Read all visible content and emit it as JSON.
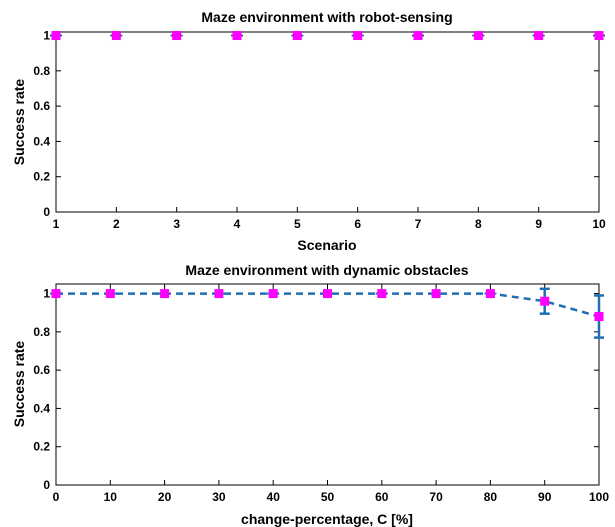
{
  "chart_data": [
    {
      "type": "scatter",
      "title": "Maze environment with robot-sensing",
      "xlabel": "Scenario",
      "ylabel": "Success rate",
      "xlim": [
        1,
        10
      ],
      "ylim": [
        0,
        1.02
      ],
      "xticks": [
        "1",
        "2",
        "3",
        "4",
        "5",
        "6",
        "7",
        "8",
        "9",
        "10"
      ],
      "yticks": [
        "0",
        "0.2",
        "0.4",
        "0.6",
        "0.8",
        "1"
      ],
      "grid": false,
      "marker_color": "#ff00ff",
      "errorbar_color": "#1f5fa8",
      "x": [
        1,
        2,
        3,
        4,
        5,
        6,
        7,
        8,
        9,
        10
      ],
      "y": [
        1,
        1,
        1,
        1,
        1,
        1,
        1,
        1,
        1,
        1
      ],
      "err": [
        0,
        0,
        0,
        0,
        0,
        0,
        0,
        0,
        0,
        0
      ]
    },
    {
      "type": "line",
      "title": "Maze environment with dynamic obstacles",
      "xlabel": "change-percentage, C [%]",
      "ylabel": "Success rate",
      "xlim": [
        0,
        100
      ],
      "ylim": [
        0,
        1.05
      ],
      "xticks": [
        "0",
        "10",
        "20",
        "30",
        "40",
        "50",
        "60",
        "70",
        "80",
        "90",
        "100"
      ],
      "yticks": [
        "0",
        "0.2",
        "0.4",
        "0.6",
        "0.8",
        "1"
      ],
      "grid": false,
      "line_style": "dashed",
      "line_color": "#1f6fb4",
      "marker_color": "#ff00ff",
      "x": [
        0,
        10,
        20,
        30,
        40,
        50,
        60,
        70,
        80,
        90,
        100
      ],
      "y": [
        1,
        1,
        1,
        1,
        1,
        1,
        1,
        1,
        1,
        0.96,
        0.88
      ],
      "err": [
        0,
        0,
        0,
        0,
        0,
        0,
        0,
        0,
        0,
        0.065,
        0.11
      ]
    }
  ]
}
